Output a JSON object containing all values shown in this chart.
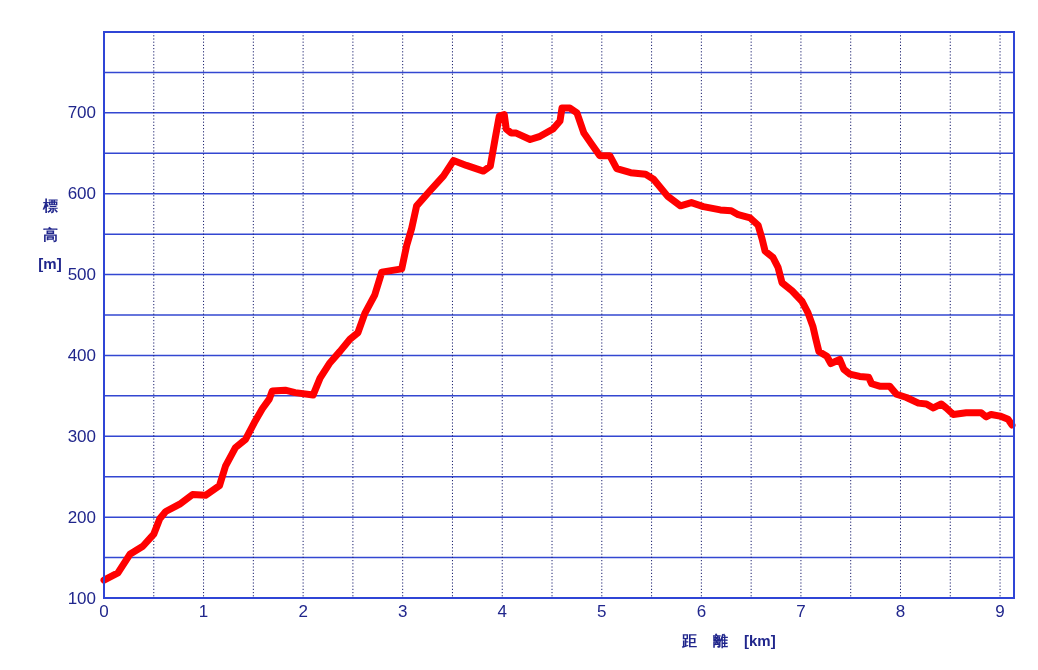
{
  "chart_data": {
    "type": "line",
    "xlabel": "距 離 [km]",
    "ylabel": "標高 [m]",
    "color": "#ff0000",
    "grid": true,
    "xlim": [
      0,
      9.14
    ],
    "ylim": [
      100,
      800
    ],
    "xticks": [
      0,
      {
        "value": 0.5,
        "label": null
      },
      1,
      {
        "value": 1.5,
        "label": null
      },
      2,
      {
        "value": 2.5,
        "label": null
      },
      3,
      {
        "value": 3.5,
        "label": null
      },
      4,
      {
        "value": 4.5,
        "label": null
      },
      5,
      {
        "value": 5.5,
        "label": null
      },
      6,
      {
        "value": 6.5,
        "label": null
      },
      7,
      {
        "value": 7.5,
        "label": null
      },
      8,
      {
        "value": 8.5,
        "label": null
      },
      9
    ],
    "yticks": [
      100,
      {
        "value": 150,
        "label": null
      },
      200,
      {
        "value": 250,
        "label": null
      },
      300,
      {
        "value": 350,
        "label": null
      },
      400,
      {
        "value": 450,
        "label": null
      },
      500,
      {
        "value": 550,
        "label": null
      },
      600,
      {
        "value": 650,
        "label": null
      },
      700,
      {
        "value": 750,
        "label": null
      }
    ],
    "x": [
      0,
      0.14,
      0.26,
      0.39,
      0.5,
      0.56,
      0.62,
      0.76,
      0.89,
      1.02,
      1.16,
      1.22,
      1.32,
      1.42,
      1.51,
      1.59,
      1.66,
      1.69,
      1.82,
      1.92,
      2.1,
      2.17,
      2.27,
      2.37,
      2.47,
      2.55,
      2.62,
      2.72,
      2.79,
      2.99,
      3.04,
      3.09,
      3.14,
      3.27,
      3.41,
      3.51,
      3.64,
      3.81,
      3.88,
      3.93,
      3.97,
      4.02,
      4.04,
      4.09,
      4.14,
      4.28,
      4.38,
      4.51,
      4.58,
      4.6,
      4.68,
      4.75,
      4.82,
      4.9,
      4.98,
      5.08,
      5.15,
      5.29,
      5.44,
      5.52,
      5.66,
      5.79,
      5.9,
      6.02,
      6.19,
      6.3,
      6.37,
      6.49,
      6.57,
      6.61,
      6.64,
      6.72,
      6.77,
      6.81,
      6.91,
      7.01,
      7.07,
      7.12,
      7.15,
      7.18,
      7.26,
      7.3,
      7.39,
      7.43,
      7.49,
      7.59,
      7.68,
      7.71,
      7.79,
      7.89,
      7.96,
      8.06,
      8.18,
      8.26,
      8.33,
      8.41,
      8.46,
      8.53,
      8.66,
      8.81,
      8.86,
      8.91,
      9.0,
      9.08,
      9.12
    ],
    "values": [
      122,
      131,
      154,
      164,
      179,
      198,
      207,
      216,
      228,
      227,
      239,
      263,
      286,
      296,
      317,
      334,
      346,
      356,
      357,
      354,
      351,
      372,
      391,
      405,
      420,
      428,
      452,
      475,
      503,
      507,
      536,
      557,
      585,
      603,
      622,
      641,
      635,
      628,
      634,
      669,
      696,
      698,
      680,
      675,
      675,
      667,
      671,
      680,
      690,
      706,
      706,
      700,
      675,
      661,
      647,
      647,
      631,
      626,
      624,
      618,
      597,
      585,
      589,
      584,
      580,
      579,
      574,
      570,
      561,
      544,
      529,
      521,
      509,
      490,
      480,
      467,
      453,
      436,
      420,
      405,
      399,
      390,
      395,
      383,
      377,
      374,
      373,
      365,
      362,
      362,
      352,
      348,
      341,
      340,
      335,
      340,
      335,
      327,
      329,
      329,
      324,
      327,
      325,
      321,
      314
    ]
  }
}
